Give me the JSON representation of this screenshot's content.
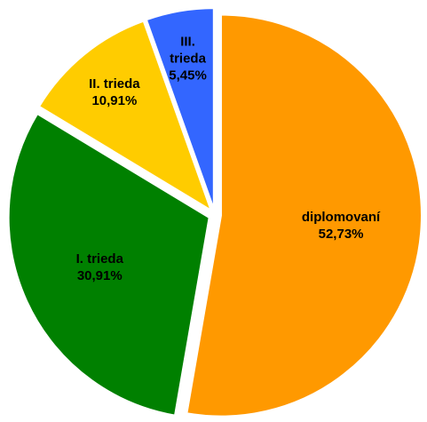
{
  "chart_data": {
    "type": "pie",
    "categories": [
      "diplomovaní",
      "I. trieda",
      "II. trieda",
      "III. trieda"
    ],
    "values": [
      52.73,
      30.91,
      10.91,
      5.45
    ],
    "value_labels": [
      "52,73%",
      "30,91%",
      "10,91%",
      "5,45%"
    ],
    "colors": [
      "#ff9900",
      "#008000",
      "#ffcc00",
      "#3366ff"
    ]
  }
}
